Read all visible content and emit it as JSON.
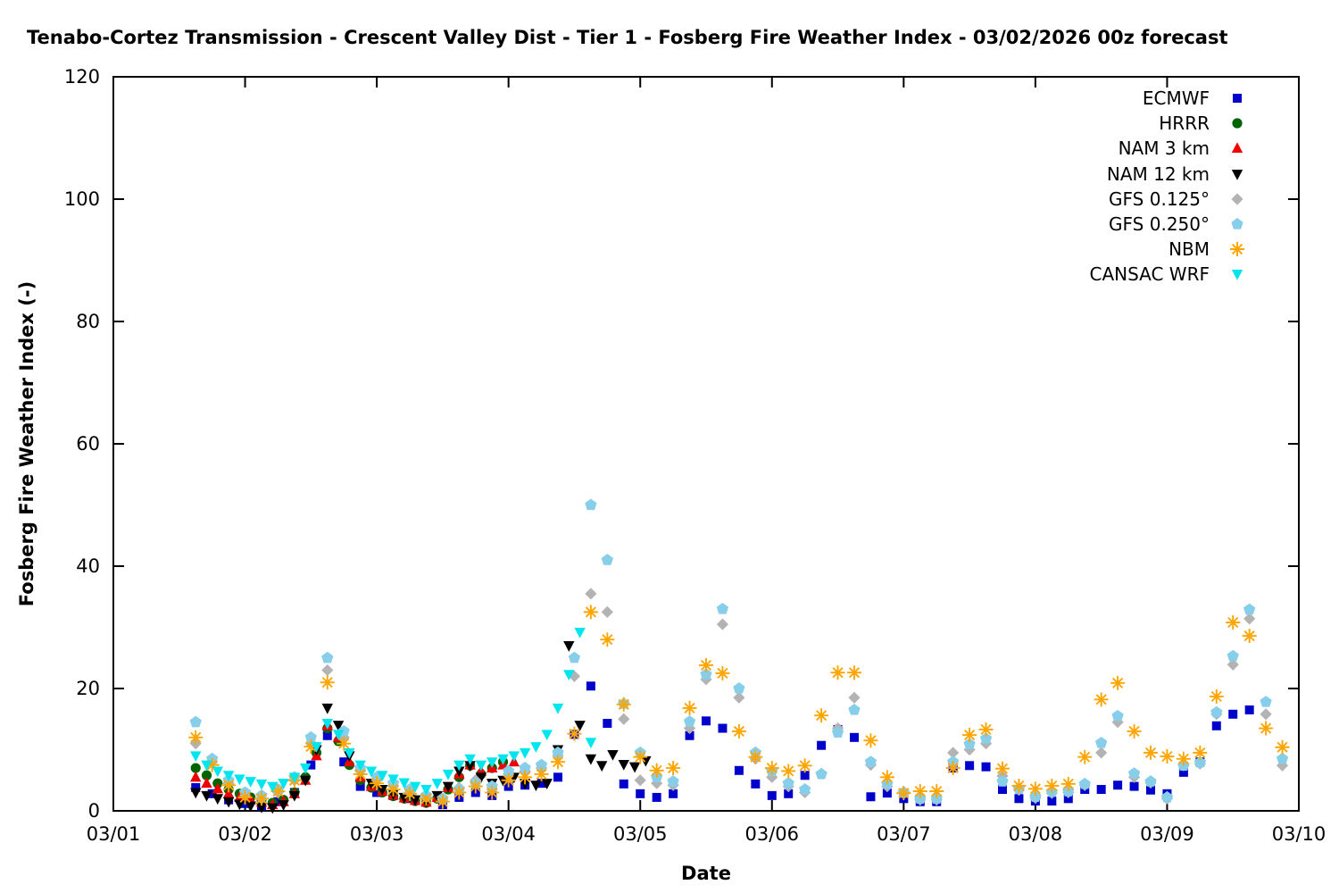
{
  "title": "Tenabo-Cortez Transmission - Crescent Valley Dist - Tier 1 - Fosberg Fire Weather Index - 03/02/2026 00z forecast",
  "colors": {
    "background": "#ffffff",
    "axis": "#000000",
    "text": "#000000"
  },
  "chart_data": {
    "type": "scatter",
    "title": "Tenabo-Cortez Transmission - Crescent Valley Dist - Tier 1 - Fosberg Fire Weather Index - 03/02/2026 00z forecast",
    "xlabel": "Date",
    "ylabel": "Fosberg Fire Weather Index (-)",
    "grid": false,
    "legend_position": "top-right",
    "x_axis": {
      "tick_labels": [
        "03/01",
        "03/02",
        "03/03",
        "03/04",
        "03/05",
        "03/06",
        "03/07",
        "03/08",
        "03/09",
        "03/10"
      ],
      "tick_positions_days": [
        0,
        1,
        2,
        3,
        4,
        5,
        6,
        7,
        8,
        9
      ],
      "range_days": [
        0,
        9
      ],
      "time_unit": "days since 2026-03-01 00z"
    },
    "y_axis": {
      "tick_labels": [
        "0",
        "20",
        "40",
        "60",
        "80",
        "100",
        "120"
      ],
      "ticks": [
        0,
        20,
        40,
        60,
        80,
        100,
        120
      ],
      "range": [
        0,
        120
      ]
    },
    "series": [
      {
        "name": "ECMWF",
        "marker": "square",
        "color": "#0000cd",
        "start_day": 0.625,
        "step_days": 0.125,
        "values": [
          3.8,
          2.8,
          1.8,
          1.2,
          0.8,
          1.5,
          3.0,
          7.5,
          12.3,
          8.0,
          4.0,
          3.0,
          2.5,
          2.0,
          1.5,
          1.0,
          2.2,
          3.0,
          2.5,
          4.0,
          4.2,
          4.5,
          5.5,
          12.5,
          20.4,
          14.3,
          4.4,
          2.8,
          2.2,
          2.8,
          12.3,
          14.7,
          13.5,
          6.6,
          4.4,
          2.5,
          2.8,
          5.8,
          10.7,
          13.3,
          12.0,
          2.3,
          2.9,
          2.0,
          1.5,
          1.5,
          7.0,
          7.4,
          7.2,
          3.5,
          2.0,
          1.6,
          1.6,
          2.0,
          3.5,
          3.5,
          4.2,
          4.0,
          3.4,
          2.8,
          6.3,
          8.0,
          13.9,
          15.8,
          16.5
        ]
      },
      {
        "name": "HRRR",
        "marker": "circle",
        "color": "#006400",
        "start_day": 0.625,
        "step_days": 0.0833333,
        "values": [
          7.0,
          5.8,
          4.5,
          3.5,
          2.8,
          2.2,
          1.8,
          1.3,
          1.8,
          3.0,
          5.5,
          9.5,
          13.5,
          11.4,
          7.5,
          5.0,
          3.8,
          3.0,
          2.4,
          2.0,
          1.6,
          1.3,
          2.0,
          3.5,
          5.5,
          7.4,
          6.0,
          7.0,
          8.0
        ]
      },
      {
        "name": "NAM 3 km",
        "marker": "triangle-up",
        "color": "#ee0000",
        "start_day": 0.625,
        "step_days": 0.0833333,
        "values": [
          5.5,
          4.5,
          3.6,
          2.8,
          2.2,
          1.8,
          1.4,
          1.0,
          1.5,
          2.8,
          5.0,
          9.0,
          13.9,
          12.0,
          8.0,
          5.5,
          4.0,
          3.2,
          2.6,
          2.1,
          1.7,
          1.4,
          2.2,
          3.8,
          6.0,
          7.5,
          6.5,
          7.0,
          7.5,
          8.0,
          7.0
        ]
      },
      {
        "name": "NAM 12 km",
        "marker": "triangle-down",
        "color": "#000000",
        "start_day": 0.625,
        "step_days": 0.0833333,
        "values": [
          3.0,
          2.5,
          2.0,
          1.5,
          1.1,
          0.8,
          0.6,
          0.5,
          1.0,
          2.5,
          5.0,
          10.0,
          16.8,
          14.0,
          9.0,
          6.0,
          4.5,
          3.5,
          2.8,
          2.2,
          1.8,
          1.5,
          2.5,
          4.0,
          6.5,
          7.4,
          5.5,
          4.5,
          5.0,
          5.5,
          4.5,
          4.2,
          4.5,
          10.0,
          27.0,
          14.0,
          8.5,
          7.4,
          9.2,
          7.6,
          7.2,
          8.2
        ]
      },
      {
        "name": "GFS 0.125°",
        "marker": "diamond",
        "color": "#b3b3b3",
        "start_day": 0.625,
        "step_days": 0.125,
        "values": [
          11.0,
          8.0,
          4.5,
          2.5,
          2.0,
          3.0,
          5.0,
          11.0,
          23.0,
          12.0,
          6.5,
          5.0,
          4.0,
          3.0,
          2.2,
          1.8,
          3.8,
          5.0,
          3.5,
          6.0,
          6.5,
          7.0,
          9.0,
          22.0,
          35.5,
          32.5,
          15.0,
          5.0,
          4.5,
          4.2,
          13.5,
          21.5,
          30.5,
          18.5,
          8.5,
          5.5,
          4.0,
          3.0,
          6.1,
          13.5,
          18.5,
          7.5,
          4.0,
          2.8,
          1.8,
          1.8,
          9.5,
          10.0,
          11.0,
          5.7,
          3.4,
          2.1,
          2.9,
          3.0,
          4.2,
          9.5,
          14.5,
          5.5,
          4.6,
          2.0,
          7.4,
          7.7,
          15.8,
          23.9,
          31.4,
          15.8,
          7.4
        ]
      },
      {
        "name": "GFS 0.250°",
        "marker": "pentagon",
        "color": "#87ceeb",
        "start_day": 0.625,
        "step_days": 0.125,
        "values": [
          14.5,
          8.5,
          5.0,
          3.0,
          2.5,
          3.5,
          5.5,
          12.0,
          25.0,
          13.0,
          7.0,
          5.5,
          4.5,
          3.5,
          2.5,
          2.0,
          3.5,
          4.5,
          4.0,
          6.5,
          7.0,
          7.5,
          9.5,
          25.0,
          50.0,
          41.0,
          17.5,
          9.5,
          5.5,
          4.8,
          14.6,
          22.3,
          33.0,
          20.0,
          9.5,
          6.5,
          4.5,
          3.5,
          6.0,
          12.8,
          16.5,
          8.0,
          4.4,
          3.0,
          2.0,
          2.0,
          8.0,
          10.9,
          11.8,
          4.8,
          3.6,
          2.3,
          3.1,
          3.2,
          4.4,
          11.1,
          15.5,
          6.1,
          4.8,
          2.2,
          7.4,
          7.9,
          16.1,
          25.3,
          32.9,
          17.8,
          8.5
        ]
      },
      {
        "name": "NBM",
        "marker": "asterisk",
        "color": "#ffa500",
        "start_day": 0.625,
        "step_days": 0.125,
        "values": [
          12.0,
          7.5,
          4.2,
          2.2,
          2.0,
          3.2,
          5.0,
          10.5,
          21.0,
          11.0,
          6.0,
          4.5,
          3.5,
          2.8,
          2.0,
          1.5,
          3.0,
          4.0,
          3.0,
          5.0,
          5.5,
          6.0,
          8.0,
          12.6,
          32.5,
          28.0,
          17.4,
          8.8,
          6.6,
          7.0,
          16.8,
          23.8,
          22.5,
          13.0,
          8.8,
          7.0,
          6.5,
          7.4,
          15.6,
          22.6,
          22.6,
          11.5,
          5.5,
          2.9,
          3.2,
          3.2,
          7.0,
          12.4,
          13.3,
          6.9,
          4.1,
          3.6,
          4.1,
          4.4,
          8.8,
          18.2,
          20.9,
          13.0,
          9.5,
          8.9,
          8.5,
          9.5,
          18.7,
          30.8,
          28.6,
          13.5,
          10.4
        ]
      },
      {
        "name": "CANSAC WRF",
        "marker": "triangle-down",
        "color": "#00e5ee",
        "start_day": 0.625,
        "step_days": 0.0833333,
        "values": [
          9.0,
          7.5,
          6.5,
          5.8,
          5.2,
          4.8,
          4.4,
          4.0,
          4.5,
          5.5,
          7.0,
          10.5,
          14.3,
          12.5,
          9.5,
          7.5,
          6.5,
          5.8,
          5.2,
          4.6,
          4.0,
          3.5,
          4.5,
          6.0,
          7.5,
          8.5,
          7.5,
          8.0,
          8.5,
          9.0,
          9.5,
          10.5,
          12.5,
          16.8,
          22.3,
          29.2,
          11.2
        ]
      }
    ]
  }
}
